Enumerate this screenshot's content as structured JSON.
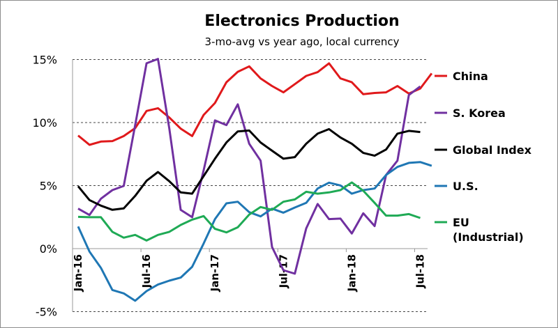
{
  "chart_data": {
    "type": "line",
    "title": "Electronics Production",
    "subtitle": "3-mo-avg vs year ago, local currency",
    "xlabel": "",
    "ylabel": "",
    "x": [
      "Jan-16",
      "Feb-16",
      "Mar-16",
      "Apr-16",
      "May-16",
      "Jun-16",
      "Jul-16",
      "Aug-16",
      "Sep-16",
      "Oct-16",
      "Nov-16",
      "Dec-16",
      "Jan-17",
      "Feb-17",
      "Mar-17",
      "Apr-17",
      "May-17",
      "Jun-17",
      "Jul-17",
      "Aug-17",
      "Sep-17",
      "Oct-17",
      "Nov-17",
      "Dec-17",
      "Jan-18",
      "Feb-18",
      "Mar-18",
      "Apr-18",
      "May-18",
      "Jun-18",
      "Jul-18",
      "Aug-18"
    ],
    "x_tick_labels": [
      "Jan-16",
      "Jul-16",
      "Jan-17",
      "Jul-17",
      "Jan-18",
      "Jul-18"
    ],
    "y_tick_labels": [
      "15%",
      "10%",
      "5%",
      "0%",
      "-5%"
    ],
    "ylim": [
      -5,
      15
    ],
    "grid": "horizontal dashed",
    "legend": "right",
    "series": [
      {
        "name": "China",
        "color": "#e0191b",
        "values": [
          8.97,
          8.23,
          8.49,
          8.53,
          8.93,
          9.56,
          10.92,
          11.14,
          10.4,
          9.52,
          8.93,
          10.6,
          11.55,
          13.2,
          14.03,
          14.46,
          13.5,
          12.9,
          12.4,
          13.05,
          13.7,
          14.0,
          14.7,
          13.5,
          13.2,
          12.25,
          12.35,
          12.4,
          12.9,
          12.3,
          12.7,
          13.9
        ]
      },
      {
        "name": "S. Korea",
        "color": "#7030a0",
        "values": [
          3.17,
          2.67,
          3.96,
          4.64,
          4.97,
          9.8,
          14.7,
          15.05,
          9.5,
          3.07,
          2.49,
          6.2,
          10.17,
          9.8,
          11.45,
          8.32,
          6.98,
          0.13,
          -1.71,
          -1.99,
          1.6,
          3.54,
          2.34,
          2.38,
          1.2,
          2.8,
          1.79,
          5.84,
          6.98,
          12.19,
          12.87,
          null
        ]
      },
      {
        "name": "Global Index",
        "color": "#000000",
        "values": [
          4.95,
          3.85,
          3.41,
          3.08,
          3.19,
          4.18,
          5.38,
          6.08,
          5.34,
          4.46,
          4.36,
          5.75,
          7.13,
          8.42,
          9.3,
          9.37,
          8.42,
          7.77,
          7.13,
          7.26,
          8.32,
          9.12,
          9.48,
          8.82,
          8.32,
          7.59,
          7.37,
          7.86,
          9.12,
          9.34,
          9.25,
          null
        ]
      },
      {
        "name": "U.S.",
        "color": "#1f77b4",
        "values": [
          1.75,
          -0.24,
          -1.53,
          -3.28,
          -3.55,
          -4.14,
          -3.37,
          -2.85,
          -2.54,
          -2.3,
          -1.44,
          0.4,
          2.34,
          3.59,
          3.72,
          2.89,
          2.56,
          3.17,
          2.85,
          3.26,
          3.63,
          4.77,
          5.23,
          5.01,
          4.36,
          4.64,
          4.77,
          5.84,
          6.48,
          6.8,
          6.87,
          6.57
        ]
      },
      {
        "name": "EU (Industrial)",
        "label_lines": [
          "EU",
          "(Industrial)"
        ],
        "color": "#1faa55",
        "values": [
          2.52,
          2.49,
          2.49,
          1.33,
          0.87,
          1.09,
          0.64,
          1.09,
          1.33,
          1.88,
          2.3,
          2.58,
          1.57,
          1.29,
          1.69,
          2.7,
          3.3,
          3.08,
          3.72,
          3.9,
          4.51,
          4.36,
          4.46,
          4.64,
          5.25,
          4.59,
          3.63,
          2.62,
          2.62,
          2.74,
          2.43,
          null
        ]
      }
    ]
  }
}
